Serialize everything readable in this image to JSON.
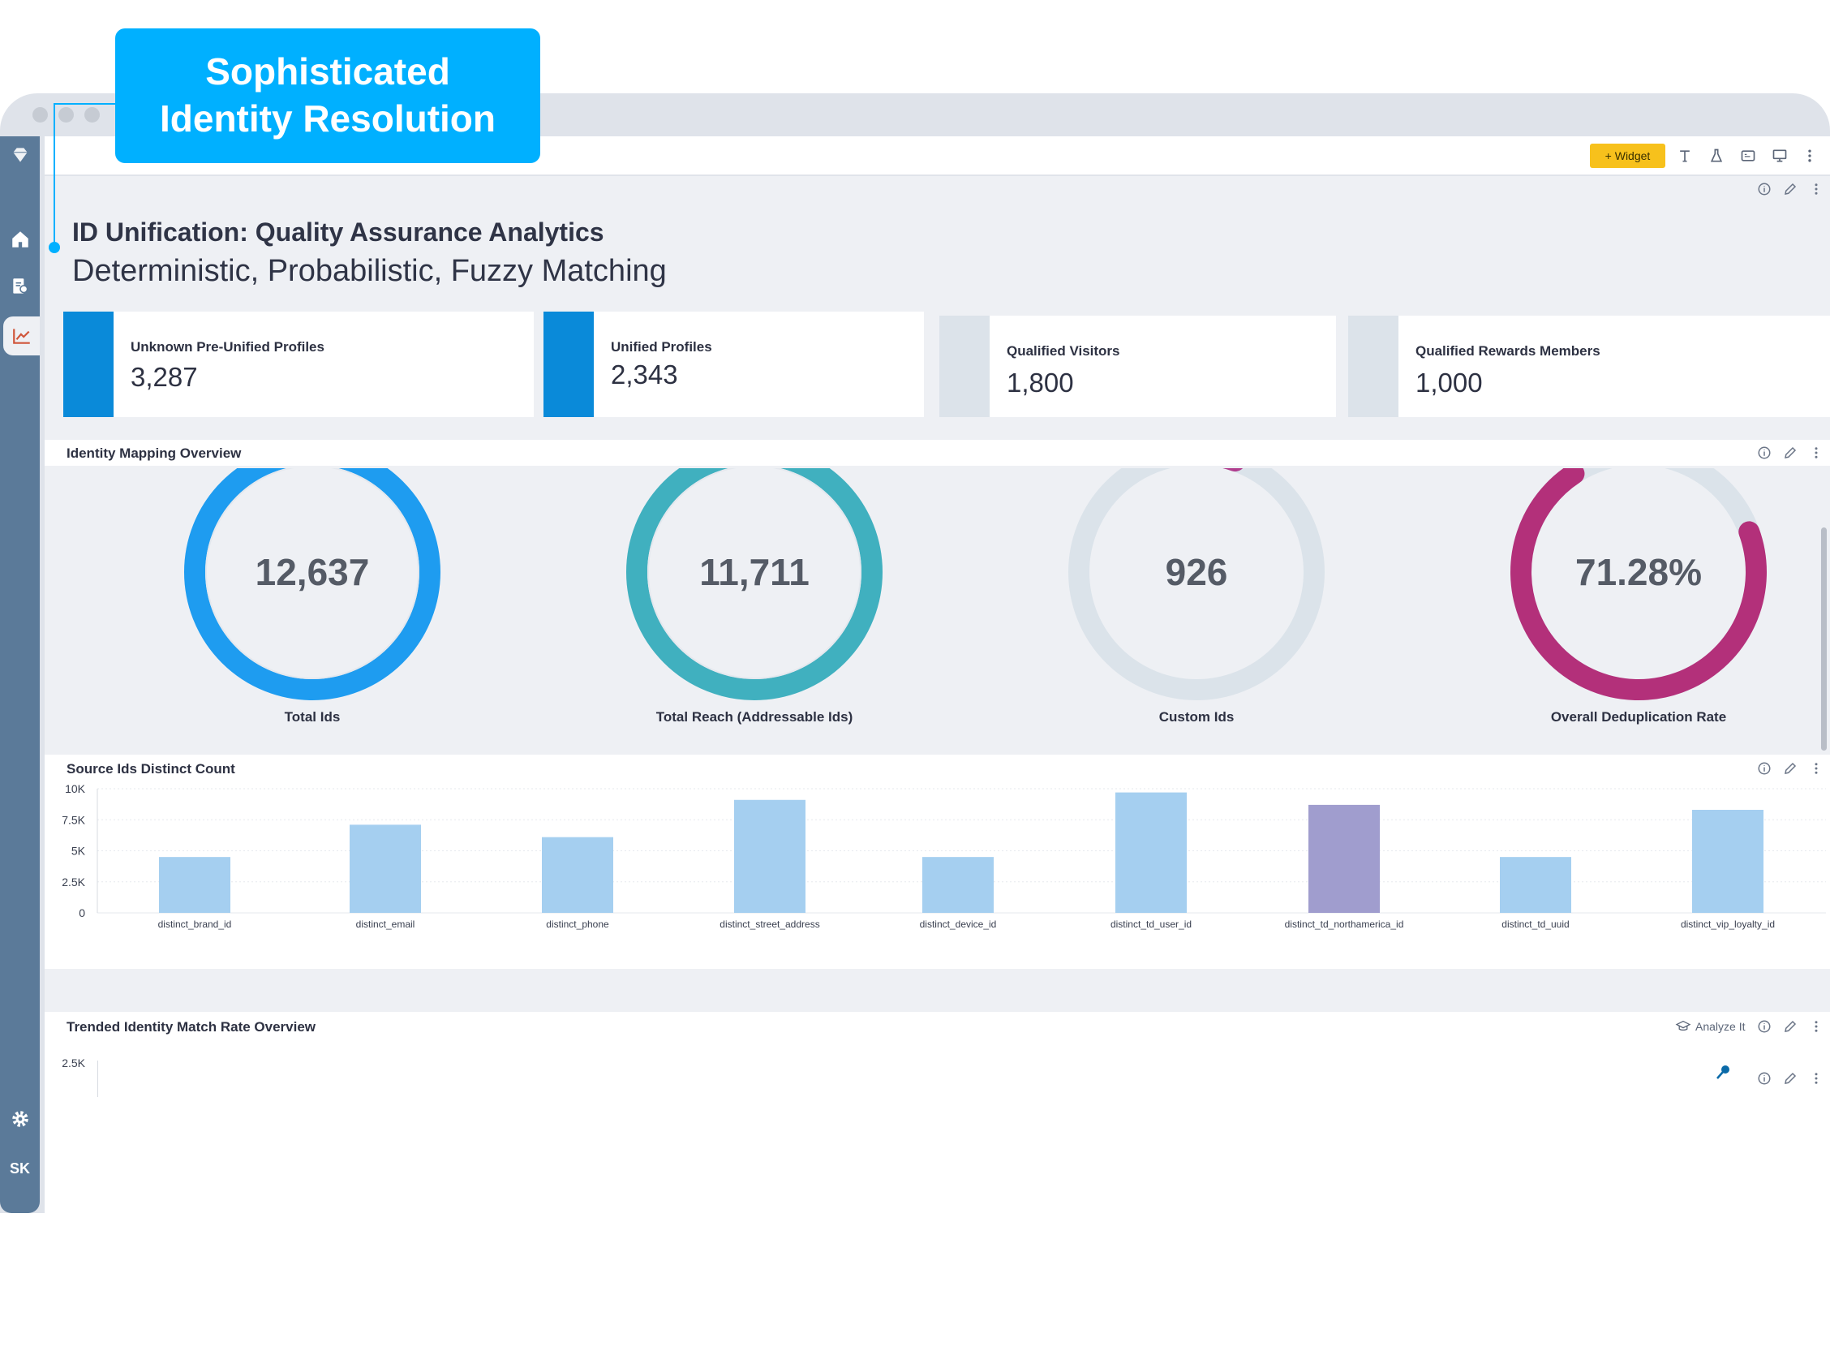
{
  "callout": {
    "line1": "Sophisticated",
    "line2": "Identity Resolution"
  },
  "sidebar": {
    "user_initials": "SK",
    "icons": [
      "gem-logo-icon",
      "home-icon",
      "profile-document-icon",
      "line-chart-icon",
      "gear-icon"
    ]
  },
  "toolbar": {
    "widget_label": "+ Widget",
    "icons": [
      "text-icon",
      "flask-icon",
      "pdf-icon",
      "monitor-icon",
      "more-vertical-icon"
    ]
  },
  "dashboard": {
    "title": "ID Unification: Quality Assurance Analytics",
    "subtitle": "Deterministic, Probabilistic, Fuzzy Matching"
  },
  "kpis": [
    {
      "label": "Unknown Pre-Unified Profiles",
      "value": "3,287",
      "bar_color": "#0a8ad9"
    },
    {
      "label": "Unified Profiles",
      "value": "2,343",
      "bar_color": "#0a8ad9"
    },
    {
      "label": "Qualified Visitors",
      "value": "1,800",
      "bar_color": "#dce3ea"
    },
    {
      "label": "Qualified Rewards Members",
      "value": "1,000",
      "bar_color": "#dce3ea"
    }
  ],
  "identity_mapping": {
    "title": "Identity Mapping Overview",
    "donuts": [
      {
        "value": "12,637",
        "label": "Total Ids",
        "color": "#1e9cf0",
        "fill": 1.0
      },
      {
        "value": "11,711",
        "label": "Total Reach (Addressable Ids)",
        "color": "#40b0bf",
        "fill": 1.0
      },
      {
        "value": "926",
        "label": "Custom Ids",
        "color": "#b03d8e",
        "fill": 0.07
      },
      {
        "value": "71.28%",
        "label": "Overall Deduplication Rate",
        "color": "#b3307a",
        "fill": 0.7128
      }
    ]
  },
  "source_ids": {
    "title": "Source Ids Distinct Count",
    "chart_data": {
      "type": "bar",
      "categories": [
        "distinct_brand_id",
        "distinct_email",
        "distinct_phone",
        "distinct_street_address",
        "distinct_device_id",
        "distinct_td_user_id",
        "distinct_td_northamerica_id",
        "distinct_td_uuid",
        "distinct_vip_loyalty_id"
      ],
      "values": [
        4500,
        7100,
        6100,
        9100,
        4500,
        9700,
        8700,
        4500,
        8300
      ],
      "highlight_index": 6,
      "bar_color": "#a5cff0",
      "highlight_color": "#a09dce",
      "ylim": [
        0,
        10000
      ],
      "yticks": [
        "0",
        "2.5K",
        "5K",
        "7.5K",
        "10K"
      ]
    }
  },
  "trend": {
    "title": "Trended Identity Match Rate Overview",
    "analyze_label": "Analyze It",
    "ytick_top": "2.5K"
  }
}
